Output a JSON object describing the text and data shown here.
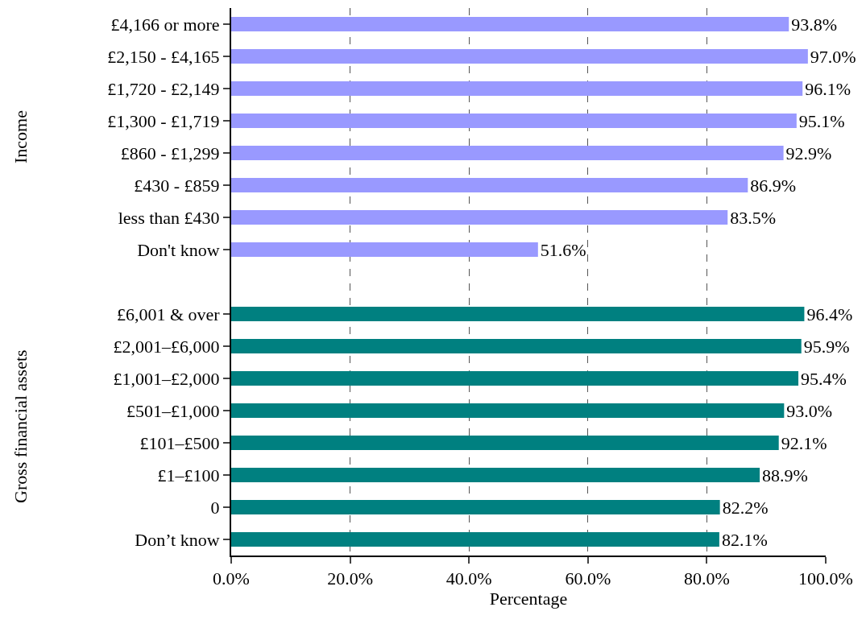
{
  "chart_data": {
    "type": "bar",
    "orientation": "horizontal",
    "xlabel": "Percentage",
    "annotations": [
      "Income",
      "Gross financial assets"
    ],
    "categories": [
      "£4,166 or more",
      "£2,150 - £4,165",
      "£1,720 - £2,149",
      "£1,300 - £1,719",
      "£860 - £1,299",
      "£430 - £859",
      "less than £430",
      "Don't know",
      null,
      "£6,001 & over",
      "£2,001–£6,000",
      "£1,001–£2,000",
      "£501–£1,000",
      "£101–£500",
      "£1–£100",
      "0",
      "Don’t know"
    ],
    "values": [
      93.8,
      97.0,
      96.1,
      95.1,
      92.9,
      86.9,
      83.5,
      51.6,
      null,
      96.4,
      95.9,
      95.4,
      93.0,
      92.1,
      88.9,
      82.2,
      82.1
    ],
    "value_labels": [
      "93.8%",
      "97.0%",
      "96.1%",
      "95.1%",
      "92.9%",
      "86.9%",
      "83.5%",
      "51.6%",
      null,
      "96.4%",
      "95.9%",
      "95.4%",
      "93.0%",
      "92.1%",
      "88.9%",
      "82.2%",
      "82.1%"
    ],
    "colors": [
      "#9999ff",
      "#9999ff",
      "#9999ff",
      "#9999ff",
      "#9999ff",
      "#9999ff",
      "#9999ff",
      "#9999ff",
      "#9999ff",
      "#008080",
      "#008080",
      "#008080",
      "#008080",
      "#008080",
      "#008080",
      "#008080",
      "#008080"
    ],
    "xlim": [
      0,
      100
    ],
    "xticks": [
      {
        "value": 0,
        "label": "0.0%"
      },
      {
        "value": 20,
        "label": "20.0%"
      },
      {
        "value": 40,
        "label": "40.0%"
      },
      {
        "value": 60,
        "label": "60.0%"
      },
      {
        "value": 80,
        "label": "80.0%"
      },
      {
        "value": 100,
        "label": "100.0%"
      }
    ],
    "grid": "x"
  }
}
